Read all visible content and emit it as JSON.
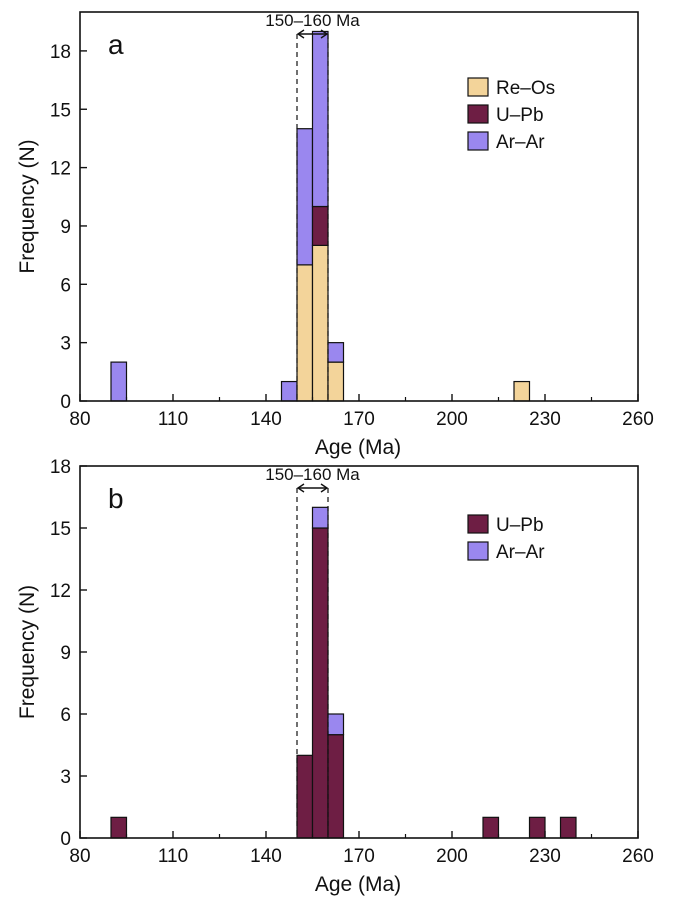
{
  "colors": {
    "Re-Os": "#f3d49a",
    "U-Pb": "#6e1e44",
    "Ar-Ar": "#9a87ef",
    "stroke": "#111111"
  },
  "chart_data": [
    {
      "type": "bar",
      "stacked": true,
      "panel_label": "a",
      "xlabel": "Age (Ma)",
      "ylabel": "Frequency (N)",
      "xlim": [
        80,
        260
      ],
      "ylim": [
        0,
        20
      ],
      "x_ticks": [
        80,
        110,
        140,
        170,
        200,
        230,
        260
      ],
      "y_ticks": [
        0,
        3,
        6,
        9,
        12,
        15,
        18
      ],
      "bin_width": 5,
      "annotation": {
        "text": "150–160 Ma",
        "x_range": [
          150,
          160
        ]
      },
      "legend": {
        "position": "top-right",
        "entries": [
          "Re–Os",
          "U–Pb",
          "Ar–Ar"
        ]
      },
      "bins": [
        {
          "start": 90,
          "segments": [
            {
              "series": "Ar-Ar",
              "count": 2
            }
          ]
        },
        {
          "start": 145,
          "segments": [
            {
              "series": "Ar-Ar",
              "count": 1
            }
          ]
        },
        {
          "start": 150,
          "segments": [
            {
              "series": "Re-Os",
              "count": 7
            },
            {
              "series": "Ar-Ar",
              "count": 7
            }
          ]
        },
        {
          "start": 155,
          "segments": [
            {
              "series": "Re-Os",
              "count": 8
            },
            {
              "series": "U-Pb",
              "count": 2
            },
            {
              "series": "Ar-Ar",
              "count": 9
            }
          ]
        },
        {
          "start": 160,
          "segments": [
            {
              "series": "Re-Os",
              "count": 2
            },
            {
              "series": "Ar-Ar",
              "count": 1
            }
          ]
        },
        {
          "start": 220,
          "segments": [
            {
              "series": "Re-Os",
              "count": 1
            }
          ]
        }
      ]
    },
    {
      "type": "bar",
      "stacked": true,
      "panel_label": "b",
      "xlabel": "Age (Ma)",
      "ylabel": "Frequency (N)",
      "xlim": [
        80,
        260
      ],
      "ylim": [
        0,
        18
      ],
      "x_ticks": [
        80,
        110,
        140,
        170,
        200,
        230,
        260
      ],
      "y_ticks": [
        0,
        3,
        6,
        9,
        12,
        15,
        18
      ],
      "bin_width": 5,
      "annotation": {
        "text": "150–160 Ma",
        "x_range": [
          150,
          160
        ]
      },
      "legend": {
        "position": "top-right",
        "entries": [
          "U–Pb",
          "Ar–Ar"
        ]
      },
      "bins": [
        {
          "start": 90,
          "segments": [
            {
              "series": "U-Pb",
              "count": 1
            }
          ]
        },
        {
          "start": 150,
          "segments": [
            {
              "series": "U-Pb",
              "count": 4
            }
          ]
        },
        {
          "start": 155,
          "segments": [
            {
              "series": "U-Pb",
              "count": 15
            },
            {
              "series": "Ar-Ar",
              "count": 1
            }
          ]
        },
        {
          "start": 160,
          "segments": [
            {
              "series": "U-Pb",
              "count": 5
            },
            {
              "series": "Ar-Ar",
              "count": 1
            }
          ]
        },
        {
          "start": 210,
          "segments": [
            {
              "series": "U-Pb",
              "count": 1
            }
          ]
        },
        {
          "start": 225,
          "segments": [
            {
              "series": "U-Pb",
              "count": 1
            }
          ]
        },
        {
          "start": 235,
          "segments": [
            {
              "series": "U-Pb",
              "count": 1
            }
          ]
        }
      ]
    }
  ]
}
